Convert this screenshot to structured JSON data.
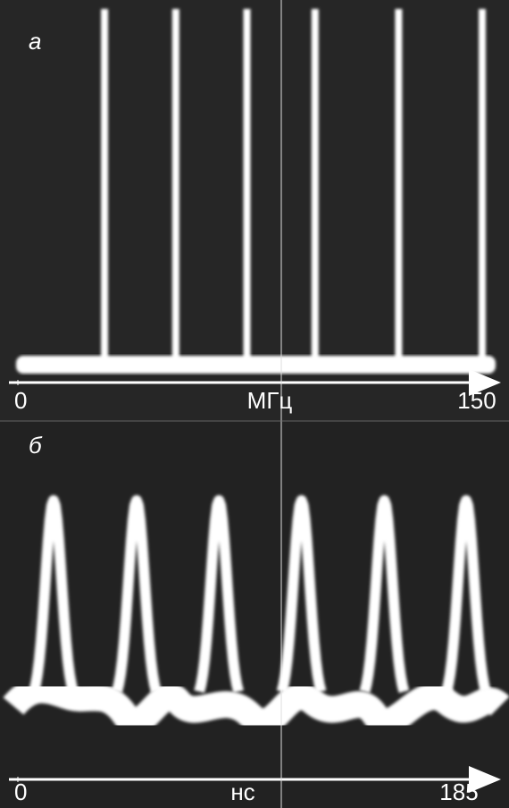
{
  "chart_data": [
    {
      "type": "spectrum",
      "title": "а",
      "xlabel": "МГц",
      "x": [
        28,
        51,
        74,
        96,
        123,
        150
      ],
      "xlim": [
        0,
        150
      ],
      "xticks": [
        0,
        150
      ],
      "color": "#ffffff"
    },
    {
      "type": "pulses",
      "title": "б",
      "xlabel": "нс",
      "x": [
        14.2,
        47.3,
        80.1,
        113,
        146,
        178.6
      ],
      "xlim": [
        0,
        185
      ],
      "xticks": [
        0,
        185
      ],
      "color": "#ffffff"
    }
  ]
}
